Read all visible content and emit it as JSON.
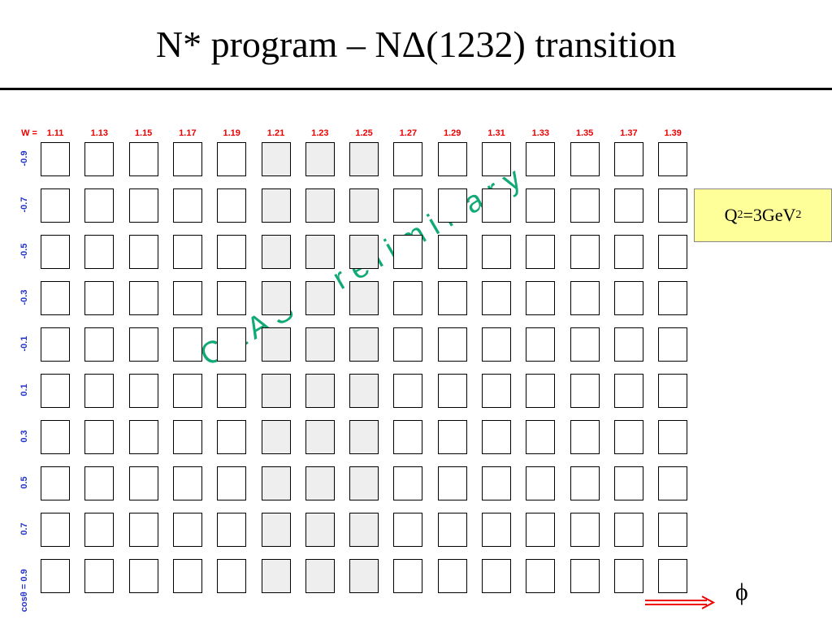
{
  "header": {
    "title": "N* program – NΔ(1232) transition"
  },
  "grid": {
    "w_label": "W =",
    "w_values": [
      "1.11",
      "1.13",
      "1.15",
      "1.17",
      "1.19",
      "1.21",
      "1.23",
      "1.25",
      "1.27",
      "1.29",
      "1.31",
      "1.33",
      "1.35",
      "1.37",
      "1.39"
    ],
    "cos_label": "cosθ =",
    "cos_values": [
      "-0.9",
      "-0.7",
      "-0.5",
      "-0.3",
      "-0.1",
      "0.1",
      "0.3",
      "0.5",
      "0.7",
      "0.9"
    ],
    "watermark": "C L A S   p r e l i m i n a r y",
    "axis_symbol": "ϕ"
  },
  "q2_box": {
    "parts": [
      "Q",
      "2",
      "=3GeV",
      "2"
    ]
  }
}
